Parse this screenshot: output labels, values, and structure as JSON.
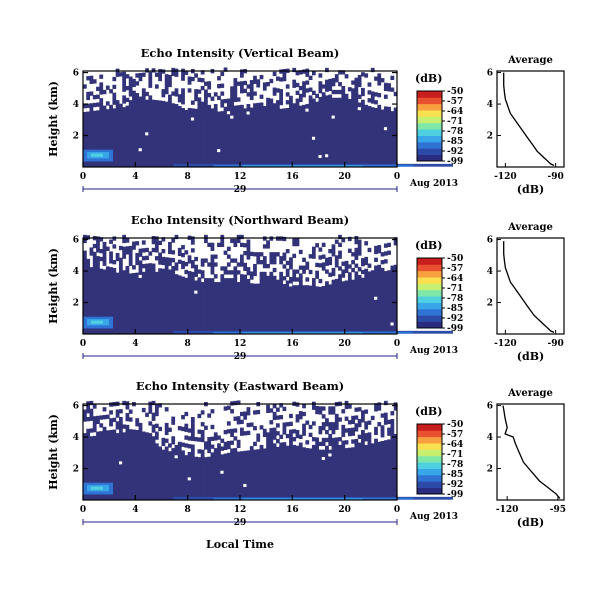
{
  "chart_data": {
    "type": "heatmap",
    "xlabel": "Local Time",
    "date_label": "Aug 2013",
    "day_label": "29",
    "x_ticks": [
      "0",
      "4",
      "8",
      "12",
      "16",
      "20",
      "0"
    ],
    "xlim": [
      0,
      24
    ],
    "colorbar": {
      "unit": "(dB)",
      "ticks": [
        "-50",
        "-57",
        "-64",
        "-71",
        "-78",
        "-85",
        "-92",
        "-99"
      ],
      "range": [
        -99,
        -50
      ],
      "colors": [
        "#2b2b80",
        "#2c4aa8",
        "#2f74d4",
        "#38a6e8",
        "#4fd0e0",
        "#7fe8a8",
        "#c8f070",
        "#f8e050",
        "#f8a040",
        "#e85030",
        "#c81e1e"
      ]
    },
    "panels": [
      {
        "title": "Echo Intensity (Vertical Beam)",
        "ylabel": "Height (km)",
        "y_ticks": [
          "2",
          "4",
          "6"
        ],
        "ylim": [
          0,
          6.1
        ],
        "lower_echo_top_km": [
          3.5,
          3.6,
          3.7,
          3.8,
          4.2,
          4.3,
          4.2,
          4.0,
          3.5,
          3.4,
          3.5,
          3.6,
          3.7,
          3.8,
          3.9,
          3.7,
          3.8,
          4.0,
          4.2,
          4.4,
          4.4,
          4.1,
          3.8,
          3.6,
          3.5
        ],
        "average": {
          "title": "Average",
          "xlabel": "(dB)",
          "x_ticks": [
            "-120",
            "-90"
          ],
          "y_ticks": [
            "2",
            "4",
            "6"
          ],
          "xlim": [
            -125,
            -85
          ],
          "ylim": [
            0,
            6.1
          ],
          "x": [
            -121,
            -121,
            -120.5,
            -120,
            -119,
            -118,
            -117,
            -115,
            -113,
            -111,
            -109,
            -107,
            -105,
            -103,
            -101,
            -99,
            -97,
            -95,
            -93,
            -91
          ],
          "height_km": [
            6.0,
            5.2,
            4.7,
            4.3,
            4.0,
            3.7,
            3.4,
            3.1,
            2.8,
            2.5,
            2.2,
            1.9,
            1.6,
            1.3,
            1.0,
            0.8,
            0.6,
            0.4,
            0.2,
            0.1
          ]
        }
      },
      {
        "title": "Echo Intensity (Northward Beam)",
        "ylabel": "Height (km)",
        "y_ticks": [
          "2",
          "4",
          "6"
        ],
        "ylim": [
          0,
          6.1
        ],
        "lower_echo_top_km": [
          4.3,
          4.2,
          4.0,
          3.8,
          3.9,
          4.0,
          3.9,
          3.8,
          3.5,
          3.3,
          3.3,
          3.3,
          3.3,
          3.2,
          3.2,
          3.2,
          3.1,
          3.1,
          3.0,
          3.2,
          3.4,
          3.5,
          3.8,
          4.0,
          4.2
        ],
        "average": {
          "title": "Average",
          "xlabel": "(dB)",
          "x_ticks": [
            "-120",
            "-90"
          ],
          "y_ticks": [
            "2",
            "4",
            "6"
          ],
          "xlim": [
            -125,
            -85
          ],
          "ylim": [
            0,
            6.1
          ],
          "x": [
            -121,
            -121,
            -120.5,
            -120,
            -119,
            -118,
            -117,
            -115,
            -113,
            -111,
            -109,
            -107,
            -105,
            -103,
            -101,
            -99,
            -97,
            -95,
            -93,
            -91
          ],
          "height_km": [
            5.9,
            5.1,
            4.6,
            4.2,
            3.9,
            3.6,
            3.3,
            3.0,
            2.7,
            2.4,
            2.1,
            1.8,
            1.5,
            1.2,
            1.0,
            0.8,
            0.6,
            0.4,
            0.2,
            0.1
          ]
        }
      },
      {
        "title": "Echo Intensity (Eastward Beam)",
        "ylabel": "Height (km)",
        "y_ticks": [
          "2",
          "4",
          "6"
        ],
        "ylim": [
          0,
          6.1
        ],
        "lower_echo_top_km": [
          4.0,
          4.1,
          4.2,
          4.3,
          4.2,
          4.0,
          3.2,
          3.0,
          2.8,
          2.7,
          2.8,
          3.0,
          3.1,
          3.2,
          3.3,
          3.4,
          3.5,
          3.3,
          3.2,
          3.2,
          3.3,
          3.4,
          3.6,
          3.8,
          4.0
        ],
        "average": {
          "title": "Average",
          "xlabel": "(dB)",
          "x_ticks": [
            "-120",
            "-95"
          ],
          "y_ticks": [
            "2",
            "4",
            "6"
          ],
          "xlim": [
            -125,
            -92
          ],
          "ylim": [
            0,
            6.1
          ],
          "x": [
            -122,
            -121,
            -120,
            -121,
            -117,
            -116,
            -115,
            -114,
            -113,
            -112,
            -110,
            -108,
            -106,
            -104,
            -102,
            -100,
            -98,
            -96,
            -94
          ],
          "height_km": [
            6.0,
            5.2,
            4.6,
            4.2,
            4.0,
            3.6,
            3.3,
            3.0,
            2.7,
            2.4,
            2.1,
            1.8,
            1.5,
            1.2,
            1.0,
            0.8,
            0.6,
            0.4,
            0.1
          ]
        }
      }
    ]
  },
  "colors": {
    "background_echo": "#33337a",
    "axis": "#000000",
    "day_axis": "#22228a"
  }
}
